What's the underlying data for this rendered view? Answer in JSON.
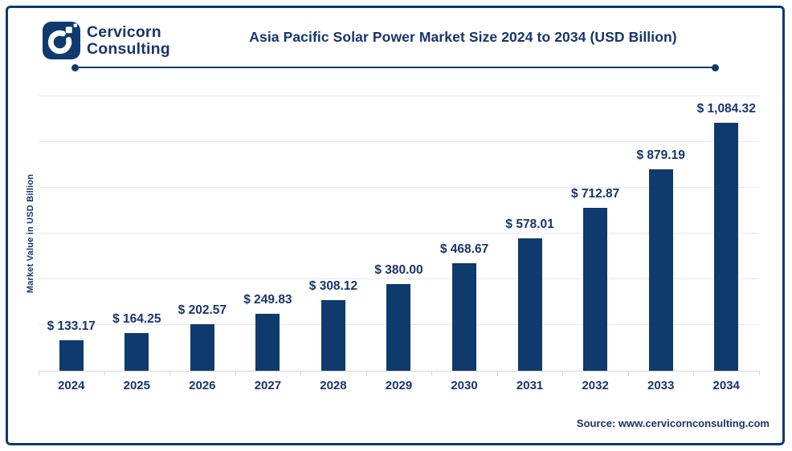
{
  "header": {
    "brand_line1": "Cervicorn",
    "brand_line2": "Consulting",
    "title": "Asia Pacific Solar Power Market Size 2024 to 2034 (USD Billion)"
  },
  "chart_data": {
    "type": "bar",
    "title": "Asia Pacific Solar Power Market Size 2024 to 2034 (USD Billion)",
    "categories": [
      "2024",
      "2025",
      "2026",
      "2027",
      "2028",
      "2029",
      "2030",
      "2031",
      "2032",
      "2033",
      "2034"
    ],
    "values": [
      133.17,
      164.25,
      202.57,
      249.83,
      308.12,
      380.0,
      468.67,
      578.01,
      712.87,
      879.19,
      1084.32
    ],
    "value_labels": [
      "$ 133.17",
      "$ 164.25",
      "$ 202.57",
      "$ 249.83",
      "$ 308.12",
      "$ 380.00",
      "$ 468.67",
      "$ 578.01",
      "$ 712.87",
      "$ 879.19",
      "$ 1,084.32"
    ],
    "xlabel": "",
    "ylabel": "Market Value in USD Billion",
    "ylim": [
      0,
      1200
    ],
    "grid_step": 200,
    "grid": true,
    "legend": "none",
    "bar_color": "#0E3A6D"
  },
  "footer": {
    "source": "Source: www.cervicornconsulting.com"
  },
  "colors": {
    "navy": "#0E3A6D",
    "text": "#16356B",
    "gridline": "#e9e9e9",
    "axis_line": "#d4d4d4"
  }
}
